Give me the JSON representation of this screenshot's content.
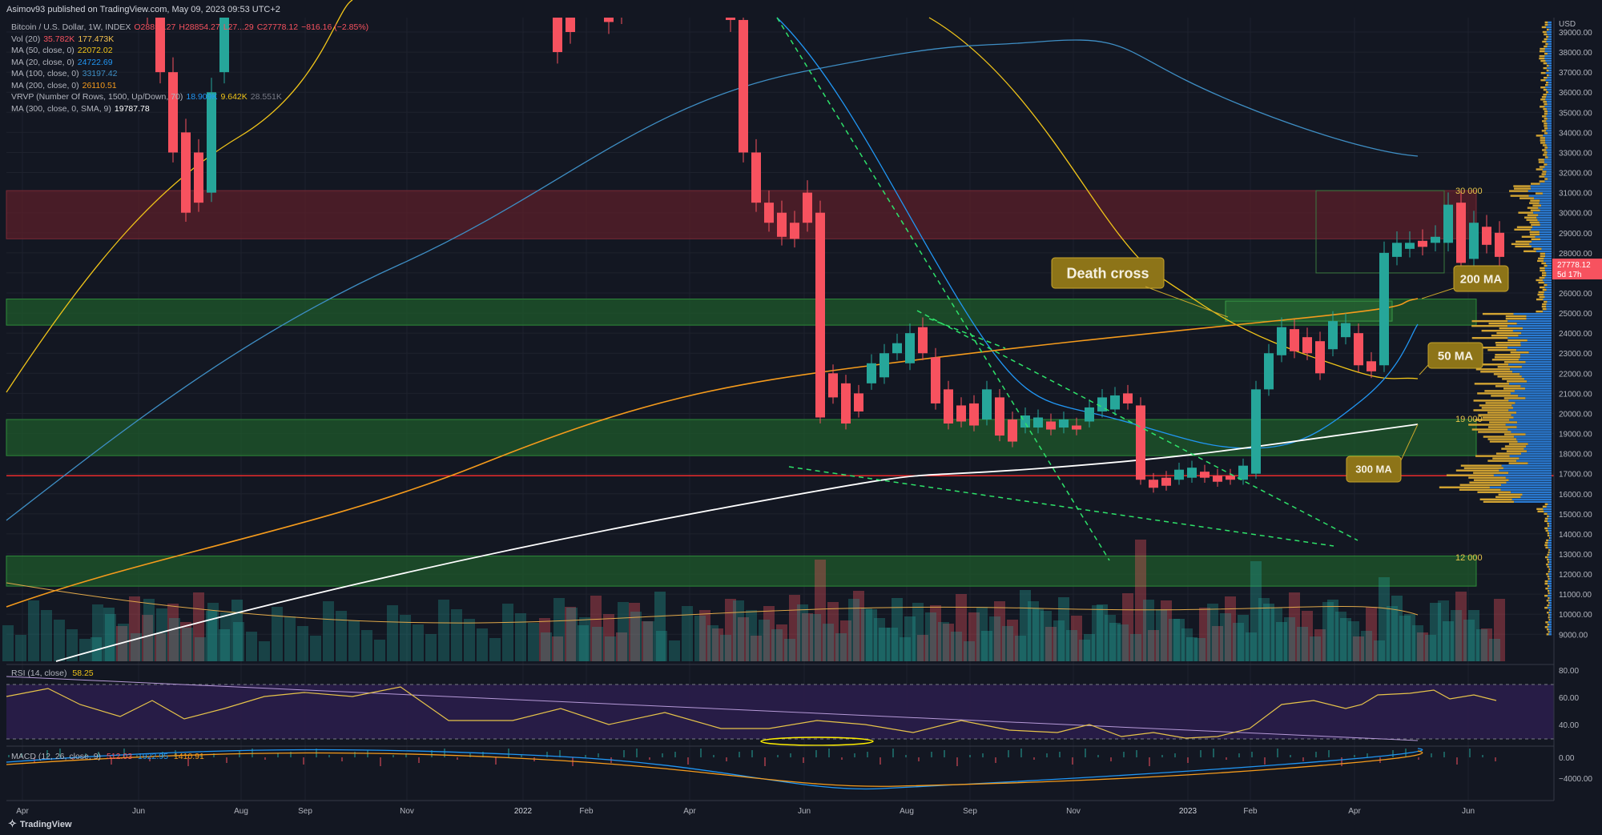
{
  "header": {
    "published": "Asimov93 published on TradingView.com, May 09, 2023 09:53 UTC+2"
  },
  "legend": [
    {
      "label": "Bitcoin / U.S. Dollar, 1W, INDEX",
      "values": [
        {
          "t": "O28854.27",
          "c": "#f7525f"
        },
        {
          "t": "H28854.27",
          "c": "#f7525f"
        },
        {
          "t": "L27...29",
          "c": "#f7525f"
        },
        {
          "t": "C27778.12",
          "c": "#f7525f"
        },
        {
          "t": "−816.16 (−2.85%)",
          "c": "#f7525f"
        }
      ]
    },
    {
      "label": "Vol (20)",
      "values": [
        {
          "t": "35.782K",
          "c": "#f7525f"
        },
        {
          "t": "177.473K",
          "c": "#f7c34f"
        }
      ]
    },
    {
      "label": "MA (50, close, 0)",
      "values": [
        {
          "t": "22072.02",
          "c": "#f0c419"
        }
      ]
    },
    {
      "label": "MA (20, close, 0)",
      "values": [
        {
          "t": "24722.69",
          "c": "#2196f3"
        }
      ]
    },
    {
      "label": "MA (100, close, 0)",
      "values": [
        {
          "t": "33197.42",
          "c": "#3e8ec4"
        }
      ]
    },
    {
      "label": "MA (200, close, 0)",
      "values": [
        {
          "t": "26110.51",
          "c": "#f59b1c"
        }
      ]
    },
    {
      "label": "VRVP (Number Of Rows, 1500, Up/Down, 70)",
      "values": [
        {
          "t": "18.909K",
          "c": "#2196f3"
        },
        {
          "t": "9.642K",
          "c": "#f0c419"
        },
        {
          "t": "28.551K",
          "c": "#787b86"
        }
      ]
    },
    {
      "label": "MA (300, close, 0, SMA, 9)",
      "values": [
        {
          "t": "19787.78",
          "c": "#ffffff"
        }
      ]
    }
  ],
  "rsi_label": {
    "name": "RSI (14, close)",
    "value": "58.25"
  },
  "macd_label": {
    "name": "MACD (12, 26, close, 9)",
    "values": [
      "512.03",
      "1922.95",
      "1410.91"
    ]
  },
  "annotations": {
    "death_cross": "Death cross",
    "ma200": "200 MA",
    "ma50": "50 MA",
    "ma300": "300 MA",
    "lvl30": "30 000",
    "lvl19": "19 000",
    "lvl12": "12 000"
  },
  "price_label": {
    "price": "27778.12",
    "countdown": "5d 17h"
  },
  "footer": {
    "brand": "TradingView"
  },
  "chart_data": {
    "type": "candlestick",
    "symbol": "Bitcoin / U.S. Dollar",
    "interval": "1W",
    "y_axis": {
      "label": "USD",
      "ticks": [
        "39000.00",
        "38000.00",
        "37000.00",
        "36000.00",
        "35000.00",
        "34000.00",
        "33000.00",
        "32000.00",
        "31000.00",
        "30000.00",
        "29000.00",
        "28000.00",
        "27000.00",
        "26000.00",
        "25000.00",
        "24000.00",
        "23000.00",
        "22000.00",
        "21000.00",
        "20000.00",
        "19000.00",
        "18000.00",
        "17000.00",
        "16000.00",
        "15000.00",
        "14000.00",
        "13000.00",
        "12000.00",
        "11000.00",
        "10000.00",
        "9000.00"
      ],
      "range": [
        8200,
        40200
      ]
    },
    "x_axis": {
      "ticks": [
        "Apr",
        "Jun",
        "Aug",
        "Sep",
        "Nov",
        "2022",
        "Feb",
        "Apr",
        "Jun",
        "Aug",
        "Sep",
        "Nov",
        "2023",
        "Feb",
        "Apr",
        "Jun"
      ]
    },
    "grid": true,
    "zones": [
      {
        "name": "resistance-30000",
        "from": 28700,
        "to": 31100,
        "color": "#5b1f2a"
      },
      {
        "name": "support-25000",
        "from": 24400,
        "to": 25700,
        "color": "#1f5a2b"
      },
      {
        "name": "support-19000",
        "from": 17900,
        "to": 19700,
        "color": "#1f5a2b"
      },
      {
        "name": "support-12000",
        "from": 11400,
        "to": 12900,
        "color": "#1f5a2b"
      }
    ],
    "horizontal_line": {
      "value": 16900,
      "color": "#ff2d2d"
    },
    "rsi": {
      "range": [
        0,
        100
      ],
      "ticks": [
        "80.00",
        "60.00",
        "40.00"
      ],
      "last": 58.25
    },
    "macd": {
      "ticks": [
        "0.00",
        "−4000.00"
      ],
      "macd": 512.03,
      "signal": 1922.95,
      "histogram": 1410.91
    }
  }
}
